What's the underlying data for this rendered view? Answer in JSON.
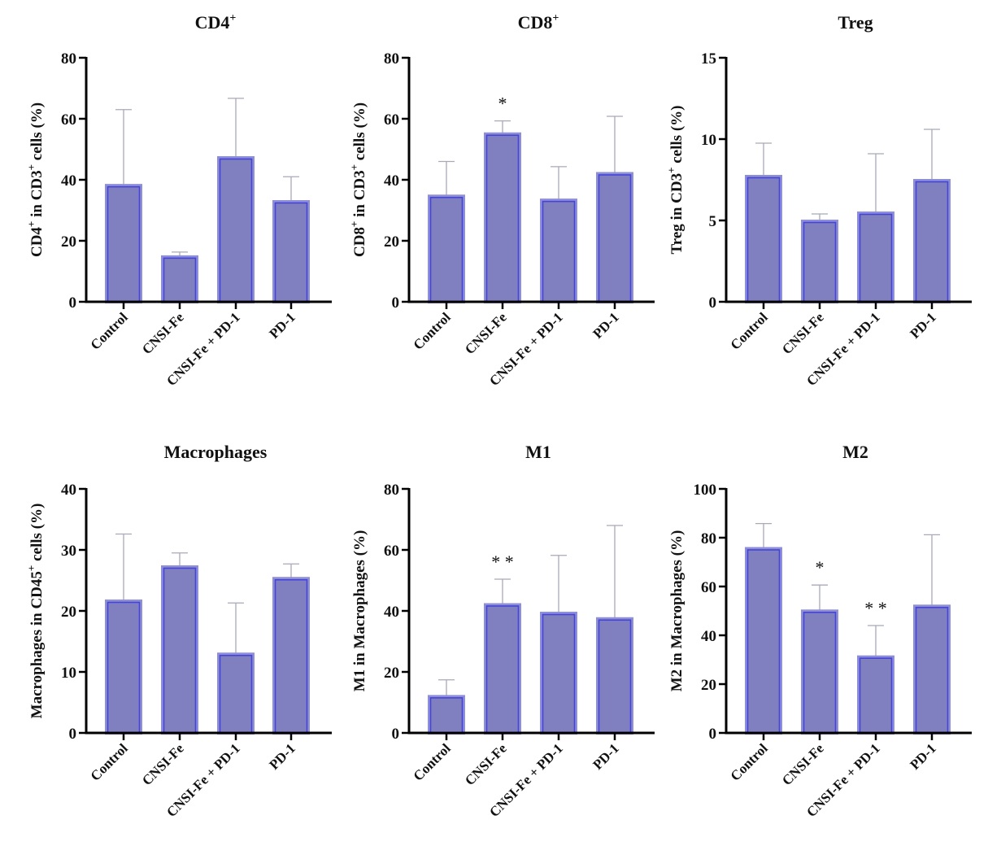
{
  "chart_data": [
    {
      "type": "bar",
      "title": "CD4",
      "title_sup": "+",
      "ylabel_parts": [
        [
          "CD4",
          ""
        ],
        [
          "+",
          "sup"
        ],
        [
          " in CD3",
          ""
        ],
        [
          "+",
          "sup"
        ],
        [
          " cells (%)",
          ""
        ]
      ],
      "categories": [
        "Control",
        "CNSI-Fe",
        "CNSI-Fe + PD-1",
        "PD-1"
      ],
      "values": [
        38.1,
        14.7,
        47.2,
        32.8
      ],
      "error_upper": [
        63.0,
        16.3,
        66.7,
        41.0
      ],
      "significance": [
        "",
        "",
        "",
        ""
      ],
      "ylim": [
        0,
        80
      ],
      "yticks": [
        0,
        20,
        40,
        60,
        80
      ]
    },
    {
      "type": "bar",
      "title": "CD8",
      "title_sup": "+",
      "ylabel_parts": [
        [
          "CD8",
          ""
        ],
        [
          "+",
          "sup"
        ],
        [
          " in CD3",
          ""
        ],
        [
          "+",
          "sup"
        ],
        [
          " cells (%)",
          ""
        ]
      ],
      "categories": [
        "Control",
        "CNSI-Fe",
        "CNSI-Fe + PD-1",
        "PD-1"
      ],
      "values": [
        34.6,
        55.0,
        33.3,
        42.0
      ],
      "error_upper": [
        46.0,
        59.3,
        44.3,
        60.8
      ],
      "significance": [
        "",
        "*",
        "",
        ""
      ],
      "ylim": [
        0,
        80
      ],
      "yticks": [
        0,
        20,
        40,
        60,
        80
      ]
    },
    {
      "type": "bar",
      "title": "Treg",
      "title_sup": "",
      "ylabel_parts": [
        [
          "Treg in CD3",
          ""
        ],
        [
          "+",
          "sup"
        ],
        [
          " cells (%)",
          ""
        ]
      ],
      "categories": [
        "Control",
        "CNSI-Fe",
        "CNSI-Fe + PD-1",
        "PD-1"
      ],
      "values": [
        7.7,
        4.95,
        5.45,
        7.45
      ],
      "error_upper": [
        9.75,
        5.4,
        9.1,
        10.6
      ],
      "significance": [
        "",
        "",
        "",
        ""
      ],
      "ylim": [
        0,
        15
      ],
      "yticks": [
        0,
        5,
        10,
        15
      ]
    },
    {
      "type": "bar",
      "title": "Macrophages",
      "title_sup": "",
      "ylabel_parts": [
        [
          "Macrophages in CD45",
          ""
        ],
        [
          "+",
          "sup"
        ],
        [
          " cells (%)",
          ""
        ]
      ],
      "categories": [
        "Control",
        "CNSI-Fe",
        "CNSI-Fe + PD-1",
        "PD-1"
      ],
      "values": [
        21.6,
        27.2,
        12.9,
        25.3
      ],
      "error_upper": [
        32.6,
        29.5,
        21.3,
        27.7
      ],
      "significance": [
        "",
        "",
        "",
        ""
      ],
      "ylim": [
        0,
        40
      ],
      "yticks": [
        0,
        10,
        20,
        30,
        40
      ]
    },
    {
      "type": "bar",
      "title": "M1",
      "title_sup": "",
      "ylabel_parts": [
        [
          "M1 in Macrophages (%)",
          ""
        ]
      ],
      "categories": [
        "Control",
        "CNSI-Fe",
        "CNSI-Fe + PD-1",
        "PD-1"
      ],
      "values": [
        11.9,
        42.0,
        39.2,
        37.4
      ],
      "error_upper": [
        17.4,
        50.4,
        58.2,
        68.0
      ],
      "significance": [
        "",
        "**",
        "",
        ""
      ],
      "ylim": [
        0,
        80
      ],
      "yticks": [
        0,
        20,
        40,
        60,
        80
      ]
    },
    {
      "type": "bar",
      "title": "M2",
      "title_sup": "",
      "ylabel_parts": [
        [
          "M2 in Macrophages (%)",
          ""
        ]
      ],
      "categories": [
        "Control",
        "CNSI-Fe",
        "CNSI-Fe + PD-1",
        "PD-1"
      ],
      "values": [
        75.5,
        49.9,
        31.1,
        51.9
      ],
      "error_upper": [
        85.8,
        60.6,
        44.0,
        81.2
      ],
      "significance": [
        "",
        "*",
        "**",
        ""
      ],
      "ylim": [
        0,
        100
      ],
      "yticks": [
        0,
        20,
        40,
        60,
        80,
        100
      ]
    }
  ],
  "colors": {
    "bar_fill": "#8080c0",
    "bar_edge": "#4444d6",
    "bar_outer": "#8f8fd8",
    "error_bar": "#a9a9b8",
    "axis": "#000000"
  }
}
